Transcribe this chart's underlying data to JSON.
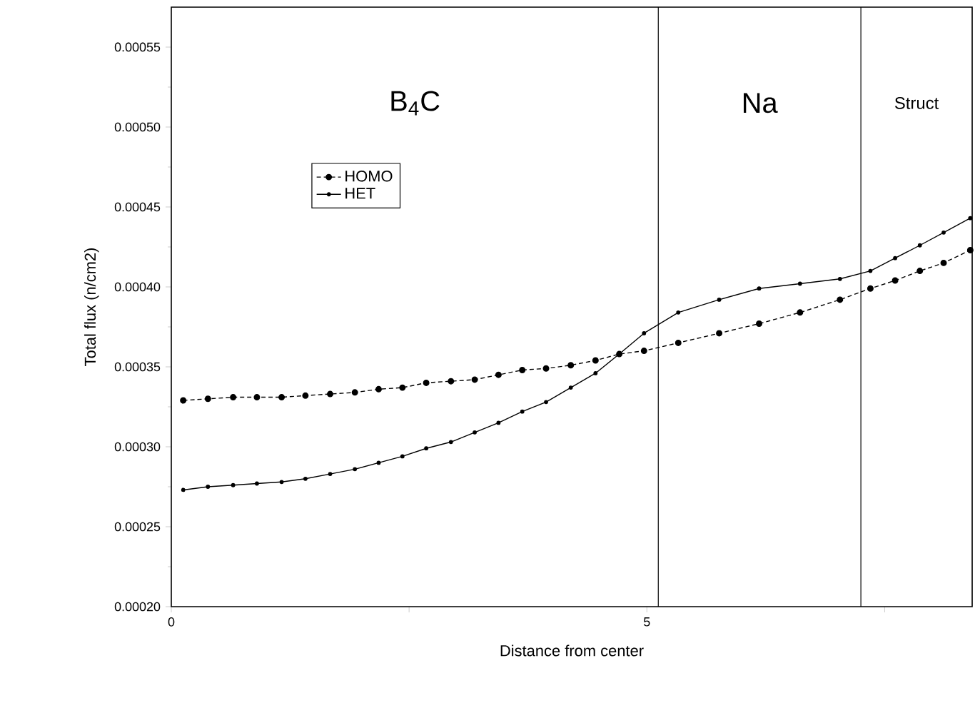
{
  "chart_data": {
    "type": "line",
    "xlabel": "Distance from center",
    "ylabel": "Total flux (n/cm2)",
    "x": [
      0.125,
      0.385,
      0.65,
      0.9,
      1.16,
      1.41,
      1.67,
      1.93,
      2.18,
      2.43,
      2.68,
      2.94,
      3.19,
      3.44,
      3.69,
      3.94,
      4.2,
      4.46,
      4.71,
      4.97,
      5.33,
      5.76,
      6.18,
      6.61,
      7.03,
      7.35,
      7.61,
      7.87,
      8.12,
      8.4
    ],
    "series": [
      {
        "name": "HOMO",
        "color": "#000000",
        "line_style": "dashed",
        "values": [
          0.000329,
          0.00033,
          0.000331,
          0.000331,
          0.000331,
          0.000332,
          0.000333,
          0.000334,
          0.000336,
          0.000337,
          0.00034,
          0.000341,
          0.000342,
          0.000345,
          0.000348,
          0.000349,
          0.000351,
          0.000354,
          0.000358,
          0.00036,
          0.000365,
          0.000371,
          0.000377,
          0.000384,
          0.000392,
          0.000399,
          0.000404,
          0.00041,
          0.000415,
          0.000423
        ]
      },
      {
        "name": "HET",
        "color": "#000000",
        "line_style": "solid",
        "values": [
          0.000273,
          0.000275,
          0.000276,
          0.000277,
          0.000278,
          0.00028,
          0.000283,
          0.000286,
          0.00029,
          0.000294,
          0.000299,
          0.000303,
          0.000309,
          0.000315,
          0.000322,
          0.000328,
          0.000337,
          0.000346,
          0.000358,
          0.000371,
          0.000384,
          0.000392,
          0.000399,
          0.000402,
          0.000405,
          0.00041,
          0.000418,
          0.000426,
          0.000434,
          0.000443
        ]
      }
    ],
    "marker": "circle",
    "xlim": [
      0,
      8.42
    ],
    "ylim": [
      0.0002,
      0.000575
    ],
    "xticks": [
      0,
      {
        "value": 2.5,
        "label": null
      },
      5,
      {
        "value": 7.5,
        "label": null
      }
    ],
    "yticks": [
      {
        "value": 0.0002,
        "label": "0.00020"
      },
      {
        "value": 0.00025,
        "label": "0.00025"
      },
      {
        "value": 0.0003,
        "label": "0.00030"
      },
      {
        "value": 0.00035,
        "label": "0.00035"
      },
      {
        "value": 0.0004,
        "label": "0.00040"
      },
      {
        "value": 0.00045,
        "label": "0.00045"
      },
      {
        "value": 0.0005,
        "label": "0.00050"
      },
      {
        "value": 0.00055,
        "label": "0.00055"
      }
    ],
    "ref_lines": [
      {
        "axis": "x",
        "value": 5.12,
        "color": "#000000"
      },
      {
        "axis": "x",
        "value": 7.25,
        "color": "#000000"
      }
    ],
    "annotations": [
      "B$_{4}$C",
      "Na",
      "Struct"
    ],
    "legend": "left",
    "grid": false
  }
}
